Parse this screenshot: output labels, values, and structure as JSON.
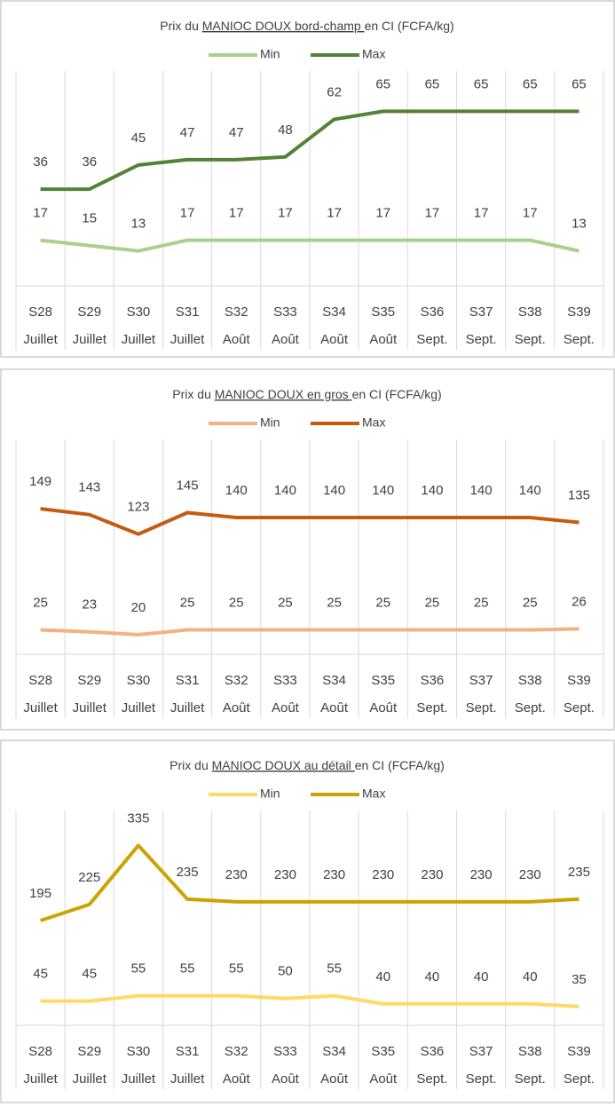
{
  "chart_data": [
    {
      "type": "line",
      "title": [
        {
          "text": "Prix du "
        },
        {
          "text": "MANIOC DOUX bord-champ ",
          "underline": true
        },
        {
          "text": "en CI (FCFA/kg)"
        }
      ],
      "categories": [
        [
          "S28",
          "Juillet"
        ],
        [
          "S29",
          "Juillet"
        ],
        [
          "S30",
          "Juillet"
        ],
        [
          "S31",
          "Juillet"
        ],
        [
          "S32",
          "Août"
        ],
        [
          "S33",
          "Août"
        ],
        [
          "S34",
          "Août"
        ],
        [
          "S35",
          "Août"
        ],
        [
          "S36",
          "Sept."
        ],
        [
          "S37",
          "Sept."
        ],
        [
          "S38",
          "Sept."
        ],
        [
          "S39",
          "Sept."
        ]
      ],
      "series": [
        {
          "name": "Min",
          "color": "#a9d18e",
          "values": [
            17,
            15,
            13,
            17,
            17,
            17,
            17,
            17,
            17,
            17,
            17,
            13
          ]
        },
        {
          "name": "Max",
          "color": "#548235",
          "values": [
            36,
            36,
            45,
            47,
            47,
            48,
            62,
            65,
            65,
            65,
            65,
            65
          ]
        }
      ],
      "ylim": [
        0,
        80
      ],
      "legend": "top"
    },
    {
      "type": "line",
      "title": [
        {
          "text": "Prix du "
        },
        {
          "text": "MANIOC DOUX  en gros ",
          "underline": true
        },
        {
          "text": "en CI (FCFA/kg)"
        }
      ],
      "categories": [
        [
          "S28",
          "Juillet"
        ],
        [
          "S29",
          "Juillet"
        ],
        [
          "S30",
          "Juillet"
        ],
        [
          "S31",
          "Juillet"
        ],
        [
          "S32",
          "Août"
        ],
        [
          "S33",
          "Août"
        ],
        [
          "S34",
          "Août"
        ],
        [
          "S35",
          "Août"
        ],
        [
          "S36",
          "Sept."
        ],
        [
          "S37",
          "Sept."
        ],
        [
          "S38",
          "Sept."
        ],
        [
          "S39",
          "Sept."
        ]
      ],
      "series": [
        {
          "name": "Min",
          "color": "#f4b183",
          "values": [
            25,
            23,
            20,
            25,
            25,
            25,
            25,
            25,
            25,
            25,
            25,
            26
          ]
        },
        {
          "name": "Max",
          "color": "#c55a11",
          "values": [
            149,
            143,
            123,
            145,
            140,
            140,
            140,
            140,
            140,
            140,
            140,
            135
          ]
        }
      ],
      "ylim": [
        0,
        220
      ],
      "legend": "top"
    },
    {
      "type": "line",
      "title": [
        {
          "text": "Prix du "
        },
        {
          "text": "MANIOC DOUX  au détail ",
          "underline": true
        },
        {
          "text": "en CI (FCFA/kg)"
        }
      ],
      "categories": [
        [
          "S28",
          "Juillet"
        ],
        [
          "S29",
          "Juillet"
        ],
        [
          "S30",
          "Juillet"
        ],
        [
          "S31",
          "Juillet"
        ],
        [
          "S32",
          "Août"
        ],
        [
          "S33",
          "Août"
        ],
        [
          "S34",
          "Août"
        ],
        [
          "S35",
          "Août"
        ],
        [
          "S36",
          "Sept."
        ],
        [
          "S37",
          "Sept."
        ],
        [
          "S38",
          "Sept."
        ],
        [
          "S39",
          "Sept."
        ]
      ],
      "series": [
        {
          "name": "Min",
          "color": "#ffd966",
          "values": [
            45,
            45,
            55,
            55,
            55,
            50,
            55,
            40,
            40,
            40,
            40,
            35
          ]
        },
        {
          "name": "Max",
          "color": "#cca300",
          "values": [
            195,
            225,
            335,
            235,
            230,
            230,
            230,
            230,
            230,
            230,
            230,
            235
          ]
        }
      ],
      "ylim": [
        0,
        400
      ],
      "legend": "top"
    }
  ]
}
